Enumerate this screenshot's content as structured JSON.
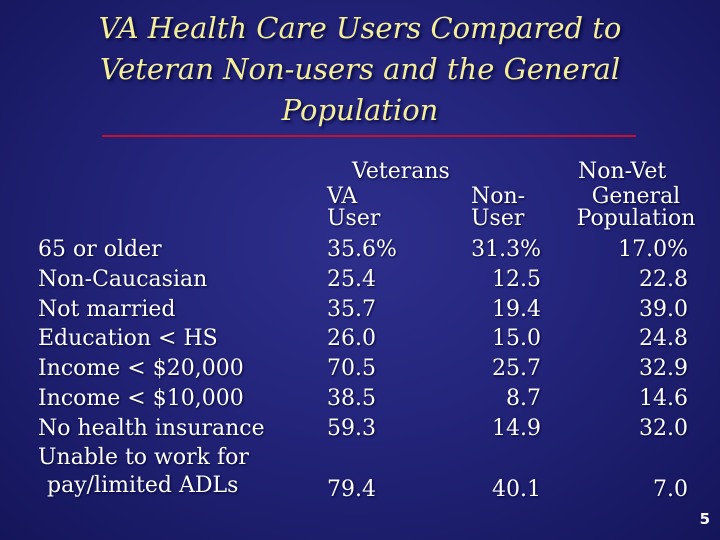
{
  "slide": {
    "title_lines": [
      "VA Health Care Users Compared to",
      "Veteran Non-users and the General",
      "Population"
    ],
    "page_number": "5"
  },
  "headers": {
    "veterans": "Veterans",
    "non_vet": "Non-Vet",
    "va_user": [
      "VA",
      "User"
    ],
    "non_user": [
      "Non-",
      "User"
    ],
    "general_population": [
      "General",
      "Population"
    ]
  },
  "rows": [
    {
      "label": "65 or older",
      "va_user": "35.6%",
      "non_user": "31.3%",
      "general": "17.0%"
    },
    {
      "label": "Non-Caucasian",
      "va_user": "25.4",
      "non_user": "12.5",
      "general": "22.8"
    },
    {
      "label": "Not married",
      "va_user": "35.7",
      "non_user": "19.4",
      "general": "39.0"
    },
    {
      "label": "Education < HS",
      "va_user": "26.0",
      "non_user": "15.0",
      "general": "24.8"
    },
    {
      "label": "Income < $20,000",
      "va_user": "70.5",
      "non_user": "25.7",
      "general": "32.9"
    },
    {
      "label": "Income < $10,000",
      "va_user": "38.5",
      "non_user": "8.7",
      "general": "14.6"
    },
    {
      "label": "No health insurance",
      "va_user": "59.3",
      "non_user": "14.9",
      "general": "32.0"
    },
    {
      "label": [
        "Unable to work for",
        "pay/limited ADLs"
      ],
      "va_user": "79.4",
      "non_user": "40.1",
      "general": "7.0"
    }
  ],
  "colors": {
    "background": "#23247a",
    "title": "#f4ee9a",
    "rule": "#c8102e",
    "text": "#ffffff"
  }
}
